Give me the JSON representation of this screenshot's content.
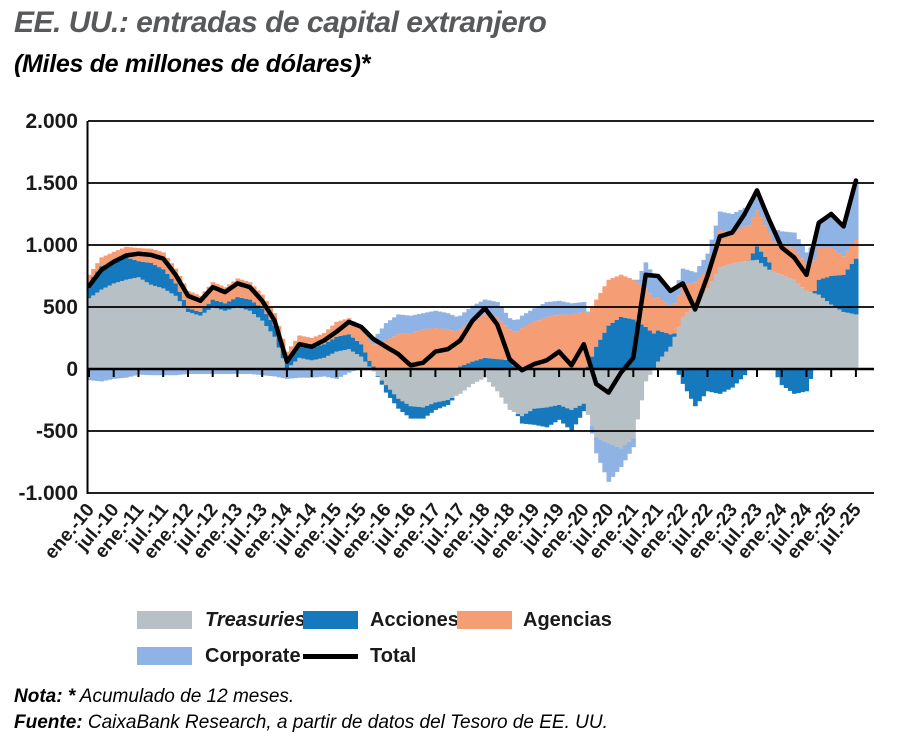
{
  "title": "EE. UU.: entradas de capital extranjero",
  "subtitle": "(Miles de millones de dólares)*",
  "legend": {
    "items": [
      {
        "label": "Treasuries",
        "color": "#b7c1c5",
        "style": "italic",
        "type": "box"
      },
      {
        "label": "Acciones",
        "color": "#1678bd",
        "style": "normal",
        "type": "box"
      },
      {
        "label": "Agencias",
        "color": "#f59e76",
        "style": "normal",
        "type": "box"
      },
      {
        "label": "Corporate",
        "color": "#8fb3e4",
        "style": "normal",
        "type": "box"
      },
      {
        "label": "Total",
        "color": "#000000",
        "style": "normal",
        "type": "line"
      }
    ]
  },
  "notes": {
    "nota_bold": "Nota: *",
    "nota_rest": " Acumulado de 12 meses.",
    "fuente_bold": "Fuente:",
    "fuente_rest": " CaixaBank Research, a partir de datos del Tesoro de EE. UU."
  },
  "colors": {
    "treasuries": "#b7c1c5",
    "acciones": "#1678bd",
    "agencias": "#f59e76",
    "corporate": "#8fb3e4",
    "total": "#000000",
    "title_gray": "#58595b",
    "axis_text": "#1a1a1a"
  },
  "chart_data": {
    "type": "bar",
    "stacked": true,
    "line_overlay": "Total",
    "title": "EE. UU.: entradas de capital extranjero",
    "ylabel": "Miles de millones de dólares (acumulado de 12 meses)",
    "ylim": [
      -1000,
      2000
    ],
    "grid": true,
    "y_tick_labels": [
      "2.000",
      "1.500",
      "1.000",
      "500",
      "0",
      "-500",
      "-1.000"
    ],
    "y_tick_values": [
      2000,
      1500,
      1000,
      500,
      0,
      -500,
      -1000
    ],
    "x_tick_labels": [
      "ene.-10",
      "jul.-10",
      "ene.-11",
      "jul.-11",
      "ene.-12",
      "jul.-12",
      "ene.-13",
      "jul.-13",
      "ene.-14",
      "jul.-14",
      "ene.-15",
      "jul.-15",
      "ene.-16",
      "jul.-16",
      "ene.-17",
      "jul.-17",
      "ene.-18",
      "jul.-18",
      "ene.-19",
      "jul.-19",
      "ene.-20",
      "jul.-20",
      "ene.-21",
      "jul.-21",
      "ene.-22",
      "jul.-22",
      "ene.-23",
      "jul.-23",
      "ene.-24",
      "jul.-24",
      "ene.-25",
      "jul.-25"
    ],
    "x_start": "2010-01",
    "x_end": "2025-07",
    "anchor_step_months": 3,
    "series": [
      {
        "name": "Treasuries",
        "color": "#b7c1c5",
        "values": [
          570,
          640,
          690,
          720,
          740,
          680,
          650,
          590,
          460,
          430,
          500,
          470,
          500,
          470,
          390,
          260,
          0,
          90,
          70,
          90,
          140,
          160,
          100,
          -20,
          -130,
          -240,
          -300,
          -310,
          -270,
          -250,
          -200,
          -120,
          -70,
          -180,
          -330,
          -380,
          -320,
          -310,
          -290,
          -330,
          -280,
          -550,
          -600,
          -640,
          -560,
          -100,
          60,
          180,
          420,
          520,
          650,
          820,
          850,
          870,
          880,
          800,
          760,
          720,
          630,
          600,
          520,
          460,
          440
        ]
      },
      {
        "name": "Acciones",
        "color": "#1678bd",
        "values": [
          130,
          190,
          170,
          180,
          130,
          175,
          155,
          100,
          30,
          30,
          60,
          60,
          80,
          90,
          100,
          90,
          60,
          90,
          100,
          110,
          120,
          120,
          100,
          20,
          -60,
          -80,
          -100,
          -90,
          -60,
          -40,
          20,
          60,
          90,
          80,
          70,
          -60,
          -130,
          -160,
          -120,
          -170,
          -60,
          180,
          350,
          420,
          400,
          340,
          250,
          100,
          -120,
          -300,
          -180,
          -200,
          -150,
          -50,
          110,
          60,
          -130,
          -200,
          -180,
          120,
          230,
          300,
          450
        ]
      },
      {
        "name": "Agencias",
        "color": "#f59e76",
        "values": [
          60,
          70,
          85,
          85,
          105,
          115,
          135,
          120,
          140,
          130,
          140,
          130,
          150,
          140,
          110,
          100,
          80,
          90,
          80,
          90,
          120,
          130,
          130,
          180,
          230,
          280,
          290,
          320,
          330,
          320,
          300,
          330,
          350,
          340,
          250,
          330,
          380,
          420,
          440,
          440,
          460,
          380,
          370,
          340,
          320,
          310,
          270,
          230,
          260,
          180,
          150,
          300,
          250,
          280,
          290,
          240,
          240,
          260,
          220,
          260,
          230,
          150,
          150
        ]
      },
      {
        "name": "Corporate",
        "color": "#8fb3e4",
        "values": [
          -90,
          -100,
          -80,
          -70,
          -45,
          -50,
          -50,
          -50,
          -40,
          -40,
          -40,
          -40,
          -40,
          -40,
          -50,
          -60,
          -80,
          -70,
          -70,
          -60,
          -80,
          -30,
          10,
          60,
          140,
          160,
          140,
          130,
          140,
          130,
          110,
          120,
          120,
          120,
          90,
          100,
          110,
          120,
          110,
          90,
          80,
          -130,
          -310,
          -150,
          -70,
          210,
          170,
          120,
          130,
          80,
          130,
          150,
          150,
          150,
          160,
          100,
          110,
          120,
          90,
          200,
          270,
          240,
          480
        ]
      }
    ],
    "total": {
      "name": "Total",
      "color": "#000000",
      "values": [
        670,
        800,
        865,
        915,
        930,
        920,
        890,
        760,
        590,
        550,
        660,
        620,
        690,
        660,
        550,
        390,
        60,
        200,
        180,
        230,
        300,
        380,
        340,
        240,
        180,
        120,
        30,
        50,
        140,
        160,
        230,
        390,
        490,
        360,
        80,
        -10,
        40,
        70,
        140,
        30,
        200,
        -120,
        -190,
        -30,
        90,
        760,
        750,
        630,
        690,
        480,
        750,
        1070,
        1100,
        1250,
        1440,
        1200,
        980,
        900,
        760,
        1180,
        1250,
        1150,
        1520
      ]
    }
  }
}
